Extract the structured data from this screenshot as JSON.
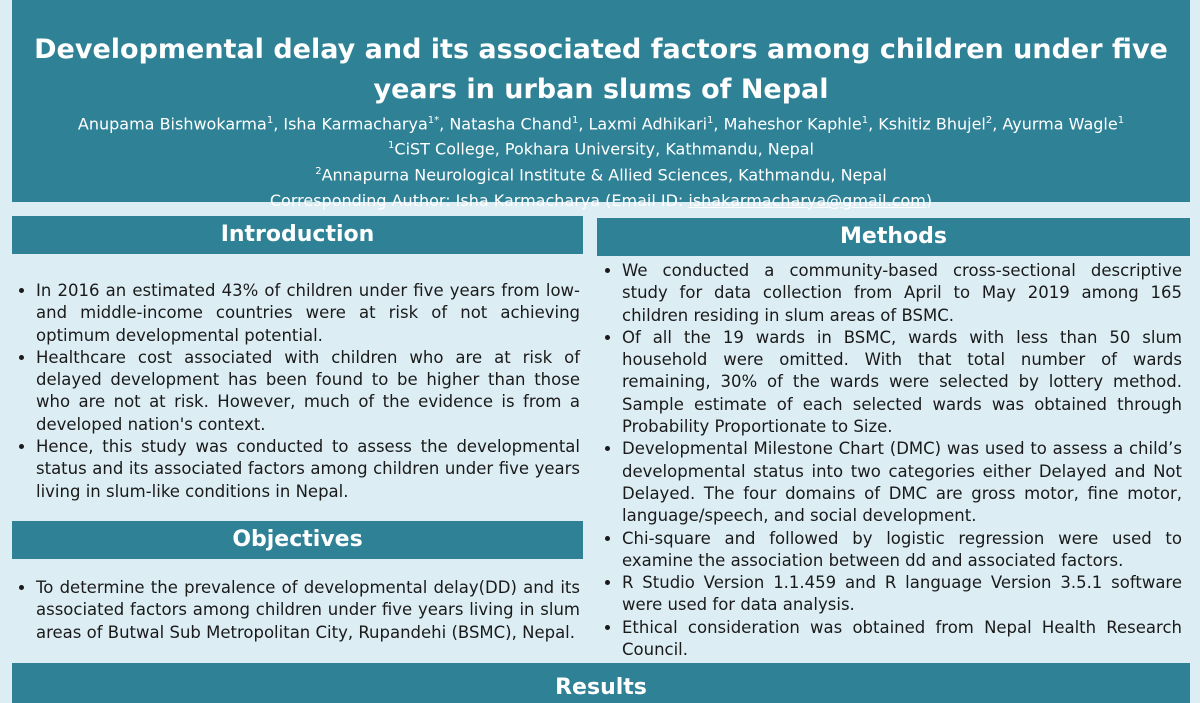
{
  "header": {
    "title": "Developmental delay and its associated factors among children under five years in urban slums of Nepal",
    "authors": [
      {
        "name": "Anupama Bishwokarma",
        "sup": "1"
      },
      {
        "name": ", Isha Karmacharya",
        "sup": "1*"
      },
      {
        "name": ", Natasha Chand",
        "sup": "1"
      },
      {
        "name": ", Laxmi Adhikari",
        "sup": "1"
      },
      {
        "name": ", Maheshor Kaphle",
        "sup": "1"
      },
      {
        "name": ", Kshitiz Bhujel",
        "sup": "2"
      },
      {
        "name": ", Ayurma Wagle",
        "sup": "1"
      }
    ],
    "affiliations": [
      {
        "sup": "1",
        "text": "CiST College, Pokhara University, Kathmandu, Nepal"
      },
      {
        "sup": "2",
        "text": "Annapurna Neurological Institute & Allied Sciences, Kathmandu, Nepal"
      }
    ],
    "corresponding": {
      "label": "Corresponding Author:  Isha Karmacharya (Email ID:  ",
      "email": "ishakarmacharya@gmail.com",
      "close": ")"
    }
  },
  "introduction": {
    "heading": "Introduction",
    "bullets": [
      "In 2016 an estimated 43% of children under five years from low- and middle-income countries were at risk of not achieving optimum developmental potential.",
      "Healthcare cost associated with children who are at risk of delayed development has been found to be higher than those who are not at risk. However, much of the evidence is from a developed nation's context.",
      "Hence, this study was conducted to assess the developmental status and its associated factors among children under five years living in slum-like conditions in Nepal."
    ]
  },
  "objectives": {
    "heading": "Objectives",
    "bullets": [
      "To determine the prevalence of developmental delay(DD) and its associated factors among children under five years living in slum areas of Butwal Sub Metropolitan City, Rupandehi (BSMC), Nepal."
    ]
  },
  "methods": {
    "heading": "Methods",
    "bullets": [
      "We conducted a community-based cross-sectional descriptive study for data collection from April to May 2019 among 165 children residing in slum areas of BSMC.",
      "Of all the 19 wards in BSMC, wards with less than 50 slum household were omitted. With that total number of wards remaining, 30% of the wards were selected by lottery method. Sample estimate of each selected wards was obtained through Probability Proportionate to Size.",
      "Developmental Milestone Chart (DMC) was used to assess a child’s developmental status into two categories either Delayed and Not Delayed. The four domains of DMC are gross motor, fine motor, language/speech, and social development.",
      "Chi-square and followed by logistic regression were used to examine the association between dd and associated factors.",
      "R Studio Version 1.1.459 and R language Version 3.5.1 software were used for data analysis.",
      "Ethical consideration was obtained from Nepal Health Research Council."
    ]
  },
  "results": {
    "heading": "Results"
  }
}
